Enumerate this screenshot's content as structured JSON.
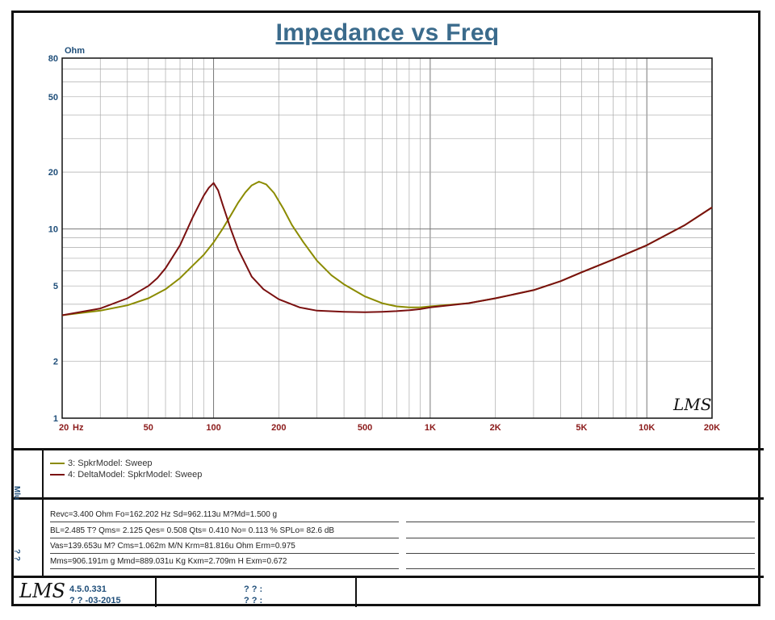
{
  "chart_data": {
    "type": "line",
    "title": "Impedance vs Freq",
    "ylabel": "Ohm",
    "x_unit": "Hz",
    "xscale": "log",
    "yscale": "log",
    "xlim": [
      20,
      20000
    ],
    "ylim": [
      1,
      80
    ],
    "grid": true,
    "x_ticks": [
      {
        "v": 20,
        "label": "20"
      },
      {
        "v": 50,
        "label": "50"
      },
      {
        "v": 100,
        "label": "100"
      },
      {
        "v": 200,
        "label": "200"
      },
      {
        "v": 500,
        "label": "500"
      },
      {
        "v": 1000,
        "label": "1K"
      },
      {
        "v": 2000,
        "label": "2K"
      },
      {
        "v": 5000,
        "label": "5K"
      },
      {
        "v": 10000,
        "label": "10K"
      },
      {
        "v": 20000,
        "label": "20K"
      }
    ],
    "y_ticks": [
      {
        "v": 1,
        "label": "1"
      },
      {
        "v": 2,
        "label": "2"
      },
      {
        "v": 5,
        "label": "5"
      },
      {
        "v": 10,
        "label": "10"
      },
      {
        "v": 20,
        "label": "20"
      },
      {
        "v": 50,
        "label": "50"
      },
      {
        "v": 80,
        "label": "80"
      }
    ],
    "series": [
      {
        "name": "3: SpkrModel: Sweep",
        "color": "#8b8b00",
        "x": [
          20,
          30,
          40,
          50,
          60,
          70,
          80,
          90,
          100,
          110,
          120,
          130,
          140,
          150,
          162,
          175,
          190,
          210,
          230,
          260,
          300,
          350,
          400,
          500,
          600,
          700,
          800,
          900,
          1000,
          1500,
          2000,
          3000,
          4000,
          5000,
          7000,
          10000,
          15000,
          20000
        ],
        "y": [
          3.5,
          3.7,
          3.95,
          4.3,
          4.8,
          5.5,
          6.4,
          7.3,
          8.5,
          10.0,
          11.8,
          13.8,
          15.6,
          17.0,
          17.8,
          17.2,
          15.5,
          12.8,
          10.5,
          8.5,
          6.8,
          5.7,
          5.1,
          4.4,
          4.05,
          3.9,
          3.85,
          3.85,
          3.9,
          4.05,
          4.3,
          4.75,
          5.3,
          5.9,
          6.9,
          8.2,
          10.5,
          13.0
        ]
      },
      {
        "name": "4: DeltaModel: SpkrModel: Sweep",
        "color": "#7a1010",
        "x": [
          20,
          30,
          40,
          50,
          55,
          60,
          70,
          80,
          90,
          95,
          100,
          105,
          110,
          120,
          130,
          150,
          170,
          200,
          250,
          300,
          400,
          500,
          600,
          700,
          800,
          900,
          1000,
          1500,
          2000,
          3000,
          4000,
          5000,
          7000,
          10000,
          15000,
          20000
        ],
        "y": [
          3.5,
          3.8,
          4.3,
          5.0,
          5.5,
          6.2,
          8.2,
          11.5,
          15.0,
          16.5,
          17.5,
          16.0,
          13.5,
          10.0,
          7.8,
          5.6,
          4.8,
          4.25,
          3.85,
          3.7,
          3.65,
          3.63,
          3.65,
          3.68,
          3.72,
          3.77,
          3.85,
          4.05,
          4.3,
          4.75,
          5.3,
          5.9,
          6.9,
          8.2,
          10.5,
          13.0
        ]
      }
    ],
    "annotation": "LMS"
  },
  "legend": {
    "items": [
      {
        "label": "3: SpkrModel: Sweep",
        "color": "#8b8b00"
      },
      {
        "label": "4: DeltaModel: SpkrModel: Sweep",
        "color": "#7a1010"
      }
    ]
  },
  "side_labels": {
    "legend_box": "Mlu",
    "params_box": "? ?"
  },
  "params": [
    "Revc=3.400 Ohm  Fo=162.202 Hz  Sd=962.113u M?Md=1.500 g",
    "BL=2.485 T?    Qms= 2.125  Qes= 0.508  Qts= 0.410  No= 0.113 %   SPLo= 82.6 dB",
    "Vas=139.653u M? Cms=1.062m M/N  Krm=81.816u Ohm  Erm=0.975",
    "Mms=906.191m g  Mmd=889.031u Kg  Kxm=2.709m H  Exm=0.672"
  ],
  "footer": {
    "logo": "LMS",
    "version": "4.5.0.331",
    "date": "? ? -03-2015",
    "field1": "? ? :",
    "field2": "? ? :"
  }
}
